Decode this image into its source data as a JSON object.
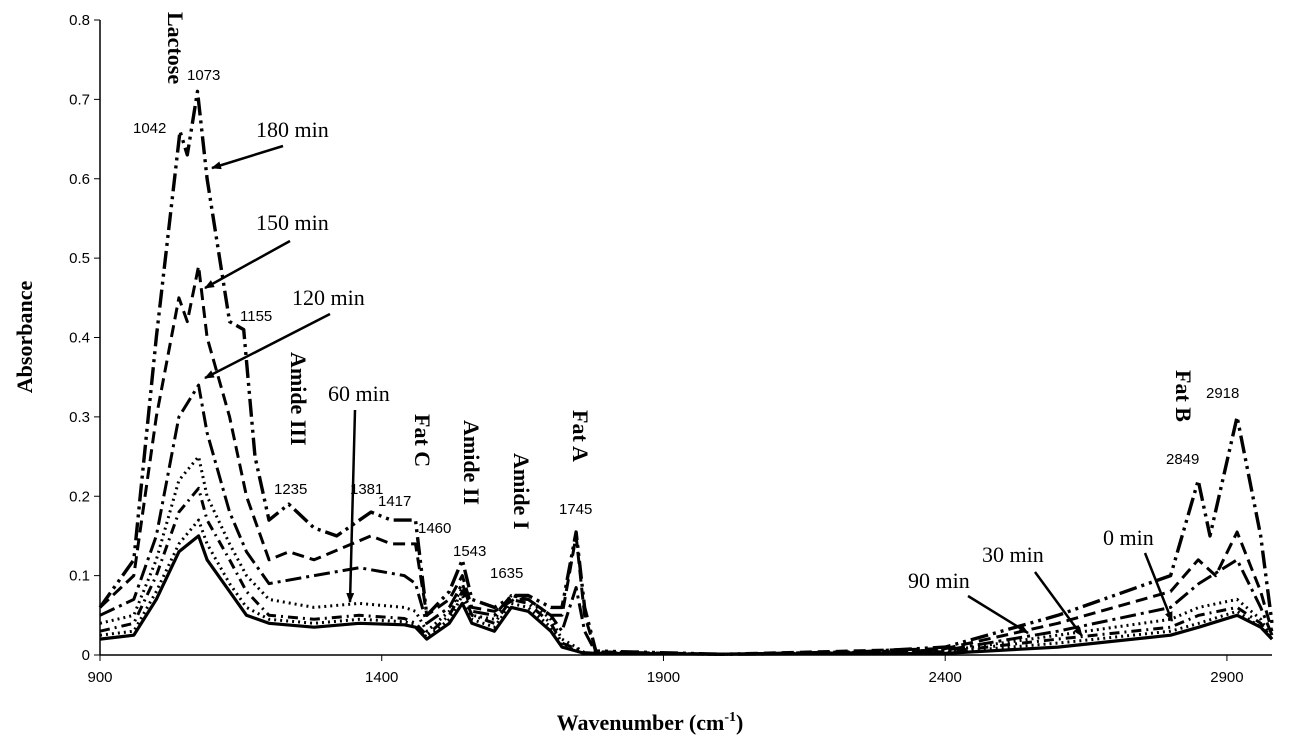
{
  "chart_data": {
    "type": "line",
    "xlabel": "Wavenumber (cm",
    "xlabel_sup": "-1",
    "xlabel_close": ")",
    "ylabel": "Absorbance",
    "xlim": [
      900,
      2980
    ],
    "ylim": [
      0,
      0.8
    ],
    "x_ticks": [
      "900",
      "1400",
      "1900",
      "2400",
      "2900"
    ],
    "y_ticks": [
      "0",
      "0.1",
      "0.2",
      "0.3",
      "0.4",
      "0.5",
      "0.6",
      "0.7",
      "0.8"
    ],
    "grid": false,
    "series": [
      {
        "label": "0 min",
        "dash": "solid",
        "x": [
          900,
          960,
          1000,
          1040,
          1075,
          1090,
          1130,
          1160,
          1200,
          1280,
          1360,
          1440,
          1460,
          1480,
          1520,
          1543,
          1560,
          1600,
          1630,
          1660,
          1700,
          1720,
          1745,
          1760,
          1780,
          2000,
          2400,
          2600,
          2800,
          2850,
          2918,
          2960,
          2980
        ],
        "y": [
          0.02,
          0.025,
          0.07,
          0.13,
          0.15,
          0.12,
          0.08,
          0.05,
          0.04,
          0.035,
          0.04,
          0.038,
          0.035,
          0.02,
          0.04,
          0.065,
          0.04,
          0.03,
          0.06,
          0.055,
          0.03,
          0.01,
          0.005,
          0.002,
          0.002,
          0.001,
          0.002,
          0.01,
          0.025,
          0.035,
          0.05,
          0.035,
          0.02
        ]
      },
      {
        "label": "30 min",
        "dash": "dot",
        "x": [
          900,
          960,
          1000,
          1040,
          1075,
          1090,
          1130,
          1160,
          1200,
          1280,
          1360,
          1440,
          1460,
          1480,
          1520,
          1543,
          1560,
          1600,
          1630,
          1660,
          1700,
          1720,
          1745,
          1760,
          1780,
          2000,
          2400,
          2600,
          2800,
          2850,
          2918,
          2960,
          2980
        ],
        "y": [
          0.025,
          0.03,
          0.08,
          0.14,
          0.17,
          0.14,
          0.09,
          0.06,
          0.045,
          0.04,
          0.045,
          0.042,
          0.038,
          0.022,
          0.045,
          0.075,
          0.045,
          0.035,
          0.065,
          0.06,
          0.035,
          0.012,
          0.006,
          0.002,
          0.002,
          0.001,
          0.003,
          0.015,
          0.03,
          0.04,
          0.055,
          0.035,
          0.02
        ]
      },
      {
        "label": "60 min",
        "dash": "dash-dot",
        "x": [
          900,
          960,
          1000,
          1040,
          1075,
          1090,
          1130,
          1160,
          1200,
          1280,
          1360,
          1440,
          1460,
          1480,
          1520,
          1543,
          1560,
          1600,
          1630,
          1660,
          1700,
          1720,
          1745,
          1760,
          1780,
          2000,
          2400,
          2600,
          2800,
          2850,
          2918,
          2960,
          2980
        ],
        "y": [
          0.03,
          0.04,
          0.1,
          0.18,
          0.21,
          0.17,
          0.12,
          0.08,
          0.05,
          0.045,
          0.05,
          0.046,
          0.04,
          0.025,
          0.05,
          0.08,
          0.05,
          0.04,
          0.07,
          0.065,
          0.04,
          0.015,
          0.008,
          0.003,
          0.002,
          0.001,
          0.004,
          0.02,
          0.035,
          0.05,
          0.06,
          0.04,
          0.02
        ]
      },
      {
        "label": "90 min",
        "dash": "dot",
        "x": [
          900,
          960,
          1000,
          1040,
          1075,
          1090,
          1130,
          1160,
          1200,
          1280,
          1360,
          1440,
          1460,
          1480,
          1520,
          1543,
          1560,
          1600,
          1630,
          1660,
          1700,
          1720,
          1745,
          1760,
          1780,
          2000,
          2400,
          2600,
          2800,
          2850,
          2918,
          2960,
          2980
        ],
        "y": [
          0.04,
          0.05,
          0.12,
          0.22,
          0.25,
          0.2,
          0.14,
          0.1,
          0.07,
          0.06,
          0.065,
          0.06,
          0.055,
          0.03,
          0.055,
          0.085,
          0.05,
          0.045,
          0.075,
          0.07,
          0.045,
          0.02,
          0.01,
          0.003,
          0.002,
          0.001,
          0.005,
          0.025,
          0.045,
          0.06,
          0.07,
          0.045,
          0.02
        ]
      },
      {
        "label": "120 min",
        "dash": "long-dash-dot",
        "x": [
          900,
          960,
          1000,
          1040,
          1075,
          1090,
          1130,
          1160,
          1200,
          1280,
          1360,
          1440,
          1460,
          1480,
          1520,
          1543,
          1560,
          1600,
          1630,
          1660,
          1700,
          1720,
          1745,
          1760,
          1780,
          2000,
          2400,
          2600,
          2800,
          2850,
          2918,
          2960,
          2980
        ],
        "y": [
          0.05,
          0.07,
          0.15,
          0.3,
          0.34,
          0.28,
          0.18,
          0.13,
          0.09,
          0.1,
          0.11,
          0.1,
          0.09,
          0.04,
          0.06,
          0.09,
          0.055,
          0.05,
          0.075,
          0.07,
          0.05,
          0.03,
          0.085,
          0.03,
          0.003,
          0.001,
          0.006,
          0.03,
          0.06,
          0.09,
          0.12,
          0.06,
          0.025
        ]
      },
      {
        "label": "150 min",
        "dash": "dash",
        "x": [
          900,
          960,
          1000,
          1040,
          1055,
          1075,
          1090,
          1130,
          1160,
          1200,
          1235,
          1280,
          1381,
          1417,
          1460,
          1480,
          1520,
          1543,
          1560,
          1600,
          1635,
          1660,
          1700,
          1720,
          1745,
          1760,
          1780,
          2000,
          2400,
          2600,
          2800,
          2849,
          2880,
          2918,
          2960,
          2980
        ],
        "y": [
          0.06,
          0.1,
          0.3,
          0.45,
          0.42,
          0.49,
          0.4,
          0.3,
          0.2,
          0.12,
          0.13,
          0.12,
          0.15,
          0.14,
          0.14,
          0.05,
          0.07,
          0.1,
          0.06,
          0.055,
          0.07,
          0.07,
          0.05,
          0.05,
          0.15,
          0.05,
          0.004,
          0.001,
          0.008,
          0.04,
          0.08,
          0.12,
          0.1,
          0.155,
          0.08,
          0.03
        ]
      },
      {
        "label": "180 min",
        "dash": "long-dash-dot-dot",
        "x": [
          900,
          960,
          1000,
          1042,
          1055,
          1073,
          1090,
          1130,
          1155,
          1175,
          1200,
          1235,
          1280,
          1320,
          1381,
          1417,
          1460,
          1480,
          1520,
          1543,
          1560,
          1600,
          1635,
          1660,
          1700,
          1720,
          1745,
          1760,
          1780,
          2000,
          2200,
          2400,
          2600,
          2800,
          2849,
          2870,
          2918,
          2960,
          2980
        ],
        "y": [
          0.06,
          0.12,
          0.4,
          0.66,
          0.63,
          0.71,
          0.6,
          0.42,
          0.41,
          0.25,
          0.17,
          0.19,
          0.16,
          0.15,
          0.18,
          0.17,
          0.17,
          0.05,
          0.08,
          0.12,
          0.07,
          0.06,
          0.075,
          0.075,
          0.06,
          0.06,
          0.155,
          0.06,
          0.005,
          0.001,
          0.002,
          0.01,
          0.05,
          0.1,
          0.22,
          0.15,
          0.3,
          0.15,
          0.04
        ]
      }
    ],
    "annotations": {
      "time_labels": [
        "180 min",
        "150 min",
        "120 min",
        "60 min",
        "90 min",
        "30 min",
        "0 min"
      ],
      "band_labels": [
        "Lactose",
        "Amide III",
        "Fat C",
        "Amide II",
        "Amide I",
        "Fat A",
        "Fat B"
      ],
      "peak_labels": [
        "1042",
        "1073",
        "1155",
        "1235",
        "1381",
        "1417",
        "1460",
        "1543",
        "1635",
        "1745",
        "2849",
        "2918"
      ]
    }
  }
}
